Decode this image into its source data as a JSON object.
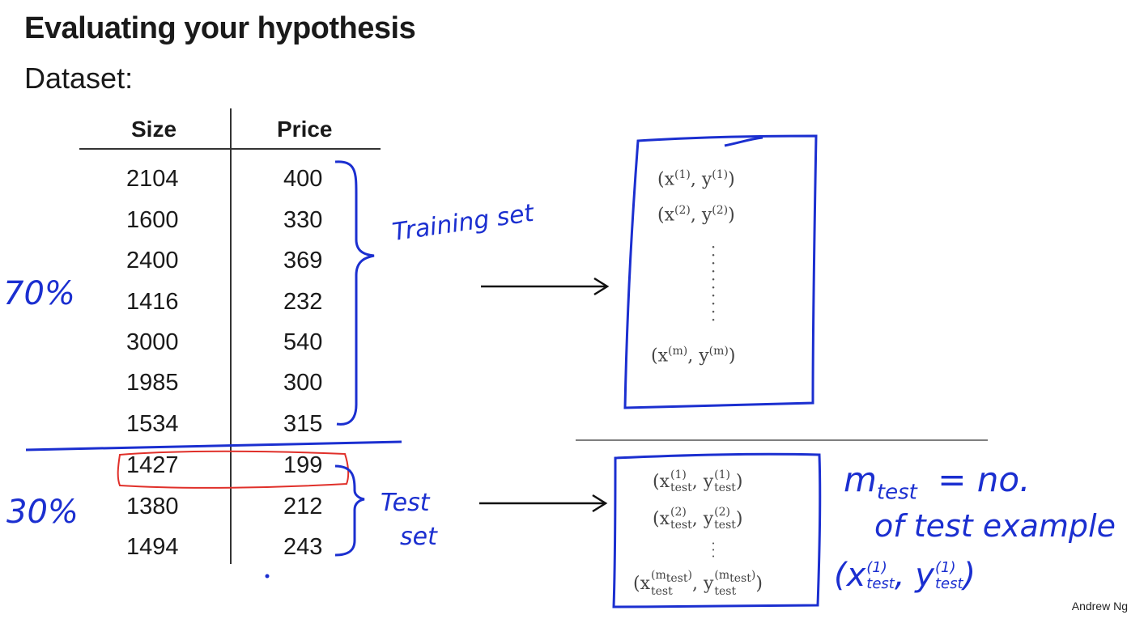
{
  "title": "Evaluating your hypothesis",
  "subtitle": "Dataset:",
  "table": {
    "headers": [
      "Size",
      "Price"
    ],
    "rows": [
      [
        "2104",
        "400"
      ],
      [
        "1600",
        "330"
      ],
      [
        "2400",
        "369"
      ],
      [
        "1416",
        "232"
      ],
      [
        "3000",
        "540"
      ],
      [
        "1985",
        "300"
      ],
      [
        "1534",
        "315"
      ],
      [
        "1427",
        "199"
      ],
      [
        "1380",
        "212"
      ],
      [
        "1494",
        "243"
      ]
    ]
  },
  "training_box": {
    "items": [
      "(x",
      "(1)",
      ", y",
      "(1)",
      ")"
    ]
  },
  "annotations": {
    "training_set": "Training set",
    "seventy": "70%",
    "thirty": "30%",
    "test_set_line1": "Test",
    "test_set_line2": "set",
    "m_test_line1": "m",
    "m_test_sub": "test",
    "m_test_eq": "= no.",
    "m_test_line2": "of test example",
    "pair_open": "(x",
    "pair_sup1": "(1)",
    "pair_sub1": "test",
    "pair_mid": ", y",
    "pair_sup2": "(1)",
    "pair_sub2": "test",
    "pair_close": ")"
  },
  "credit": "Andrew Ng",
  "colors": {
    "ink_blue": "#1b2fd0",
    "highlight_red": "#e0302a",
    "text": "#1a1a1a"
  }
}
